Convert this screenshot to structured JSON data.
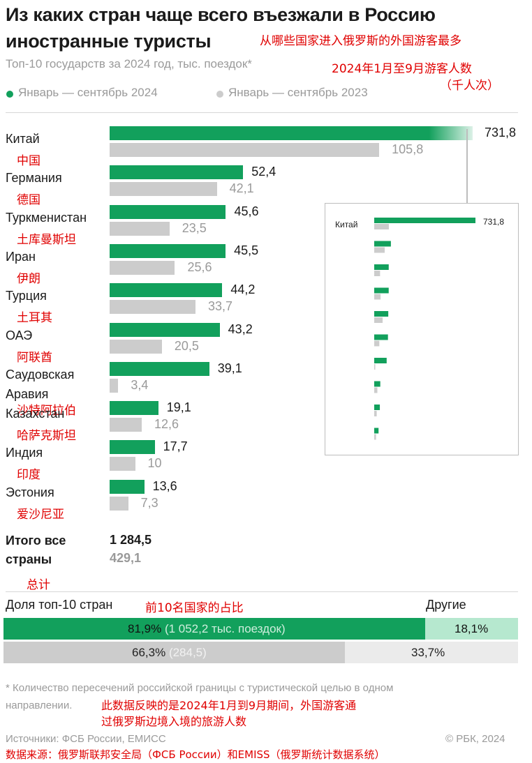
{
  "title": {
    "line1": "Из каких стран чаще всего въезжали в Россию",
    "line2": "иностранные туристы",
    "translation": "从哪些国家进入俄罗斯的外国游客最多"
  },
  "subtitle": {
    "text": "Топ-10 государств за 2024 год, тыс. поездок*",
    "translation": "2024年1月至9月游客人数",
    "translation2": "（千人次）"
  },
  "legend": [
    {
      "label": "Январь — сентябрь 2024",
      "color": "#12a05c"
    },
    {
      "label": "Январь — сентябрь 2023",
      "color": "#cccccc"
    }
  ],
  "chart_data": {
    "type": "bar",
    "orientation": "horizontal",
    "unit": "тыс. поездок",
    "categories": [
      {
        "name": "Китай",
        "cn": "中国"
      },
      {
        "name": "Германия",
        "cn": "德国"
      },
      {
        "name": "Туркменистан",
        "cn": "土库曼斯坦"
      },
      {
        "name": "Иран",
        "cn": "伊朗"
      },
      {
        "name": "Турция",
        "cn": "土耳其"
      },
      {
        "name": "ОАЭ",
        "cn": "阿联酋"
      },
      {
        "name": "Саудовская Аравия",
        "cn": "沙特阿拉伯"
      },
      {
        "name": "Казахстан",
        "cn": "哈萨克斯坦"
      },
      {
        "name": "Индия",
        "cn": "印度"
      },
      {
        "name": "Эстония",
        "cn": "爱沙尼亚"
      }
    ],
    "series": [
      {
        "name": "Январь — сентябрь 2024",
        "values": [
          731.8,
          52.4,
          45.6,
          45.5,
          44.2,
          43.2,
          39.1,
          19.1,
          17.7,
          13.6
        ],
        "labels": [
          "731,8",
          "52,4",
          "45,6",
          "45,5",
          "44,2",
          "43,2",
          "39,1",
          "19,1",
          "17,7",
          "13,6"
        ]
      },
      {
        "name": "Январь — сентябрь 2023",
        "values": [
          105.8,
          42.1,
          23.5,
          25.6,
          33.7,
          20.5,
          3.4,
          12.6,
          10,
          7.3
        ],
        "labels": [
          "105,8",
          "42,1",
          "23,5",
          "25,6",
          "33,7",
          "20,5",
          "3,4",
          "12,6",
          "10",
          "7,3"
        ]
      }
    ],
    "inset": {
      "label": "Китай",
      "value_label": "731,8"
    }
  },
  "total": {
    "label_line1": "Итого все",
    "label_line2": "страны",
    "value_2024": "1 284,5",
    "value_2023": "429,1",
    "translation": "总计"
  },
  "share": {
    "label": "Доля топ-10 стран",
    "translation": "前10名国家的占比",
    "others_label": "Другие",
    "y2024": {
      "percent": "81,9%",
      "detail": "(1 052,2 тыс. поездок)",
      "other": "18,1%",
      "fraction": 0.819
    },
    "y2023": {
      "percent": "66,3%",
      "detail": "(284,5)",
      "other": "33,7%",
      "fraction": 0.663
    }
  },
  "footnote": {
    "text1": "* Количество пересечений российской границы с туристической целью в одном",
    "text2": "направлении.",
    "translation1": "此数据反映的是2024年1月到9月期间，外国游客通",
    "translation2": "过俄罗斯边境入境的旅游人数"
  },
  "sources": {
    "text": "Источники: ФСБ России, ЕМИСС",
    "copyright": "© РБК, 2024",
    "translation": "数据来源：俄罗斯联邦安全局（ФСБ России）和EMISS（俄罗斯统计数据系统）"
  }
}
